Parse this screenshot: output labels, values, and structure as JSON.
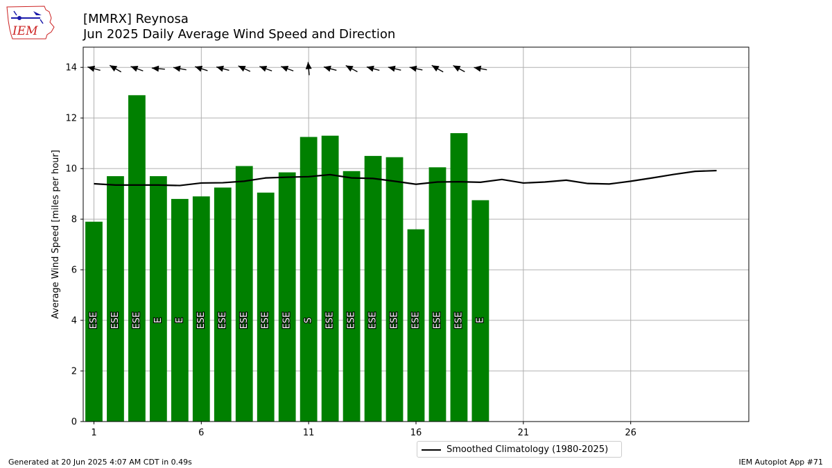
{
  "header": {
    "title_line1": "[MMRX] Reynosa",
    "title_line2": "Jun 2025 Daily Average Wind Speed and Direction"
  },
  "footer": {
    "left": "Generated at 20 Jun 2025 4:07 AM CDT in 0.49s",
    "right": "IEM Autoplot App #71"
  },
  "logo": {
    "text": "IEM"
  },
  "legend": {
    "label": "Smoothed Climatology (1980-2025)"
  },
  "colors": {
    "bar": "#008000",
    "line": "#000000",
    "grid": "#b0b0b0"
  },
  "chart_data": {
    "type": "bar",
    "ylabel": "Average Wind Speed [miles per hour]",
    "xlabel": "",
    "xlim": [
      0.5,
      31.5
    ],
    "ylim": [
      0,
      14.8
    ],
    "xticks": [
      1,
      6,
      11,
      16,
      21,
      26
    ],
    "yticks": [
      0,
      2,
      4,
      6,
      8,
      10,
      12,
      14
    ],
    "grid": true,
    "legend_position": "bottom-center",
    "series": [
      {
        "type": "bar",
        "days": [
          1,
          2,
          3,
          4,
          5,
          6,
          7,
          8,
          9,
          10,
          11,
          12,
          13,
          14,
          15,
          16,
          17,
          18,
          19
        ],
        "values": [
          7.9,
          9.7,
          12.9,
          9.7,
          8.8,
          8.9,
          9.25,
          10.1,
          9.05,
          9.85,
          11.25,
          11.3,
          9.9,
          10.5,
          10.45,
          7.6,
          10.05,
          11.4,
          8.75
        ],
        "direction_labels": [
          "ESE",
          "ESE",
          "ESE",
          "E",
          "E",
          "ESE",
          "ESE",
          "ESE",
          "ESE",
          "ESE",
          "S",
          "ESE",
          "ESE",
          "ESE",
          "ESE",
          "ESE",
          "ESE",
          "ESE",
          "E"
        ],
        "direction_degrees": [
          105,
          120,
          110,
          95,
          100,
          108,
          105,
          115,
          110,
          110,
          175,
          105,
          118,
          105,
          103,
          102,
          120,
          118,
          100
        ]
      },
      {
        "type": "line",
        "name": "Smoothed Climatology (1980-2025)",
        "x": [
          1,
          2,
          3,
          4,
          5,
          6,
          7,
          8,
          9,
          10,
          11,
          12,
          13,
          14,
          15,
          16,
          17,
          18,
          19,
          20,
          21,
          22,
          23,
          24,
          25,
          26,
          27,
          28,
          29,
          30
        ],
        "values": [
          9.4,
          9.35,
          9.35,
          9.35,
          9.33,
          9.43,
          9.44,
          9.5,
          9.63,
          9.66,
          9.68,
          9.76,
          9.63,
          9.61,
          9.5,
          9.38,
          9.47,
          9.48,
          9.46,
          9.57,
          9.43,
          9.47,
          9.54,
          9.41,
          9.39,
          9.5,
          9.63,
          9.77,
          9.89,
          9.92
        ]
      }
    ]
  }
}
